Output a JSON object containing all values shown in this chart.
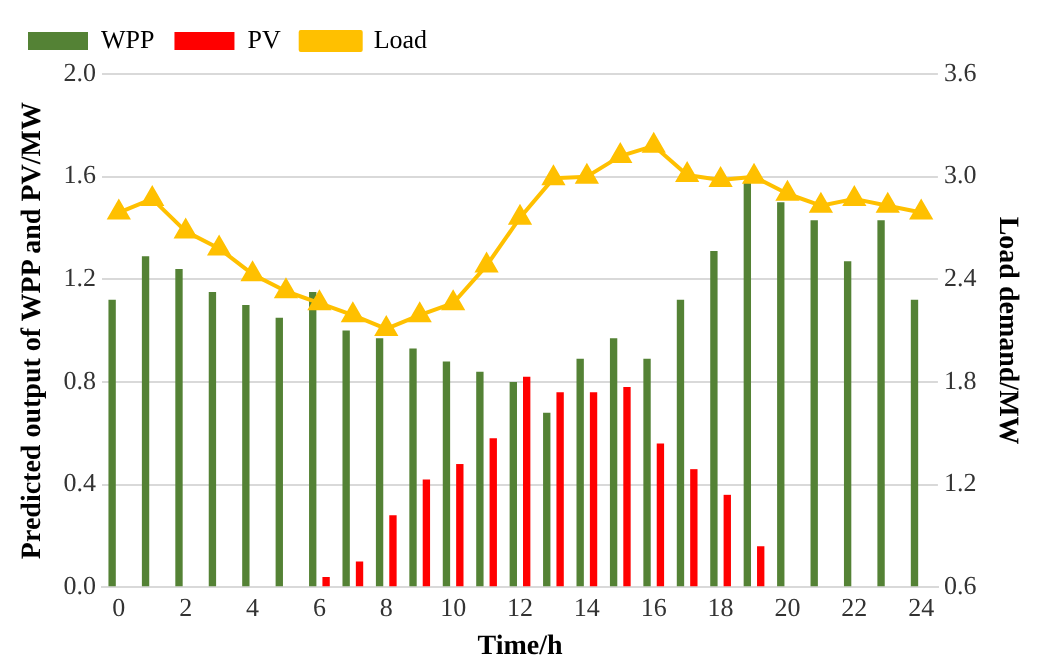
{
  "chart_data": {
    "type": "bar",
    "xlabel": "Time/h",
    "ylabel": "Predicted output of WPP and PV/MW",
    "y2label": "Load demand/MW",
    "x": [
      0,
      1,
      2,
      3,
      4,
      5,
      6,
      7,
      8,
      9,
      10,
      11,
      12,
      13,
      14,
      15,
      16,
      17,
      18,
      19,
      20,
      21,
      22,
      23,
      24
    ],
    "xlim": [
      -0.5,
      24.5
    ],
    "xticks": [
      0,
      2,
      4,
      6,
      8,
      10,
      12,
      14,
      16,
      18,
      20,
      22,
      24
    ],
    "series": [
      {
        "name": "WPP",
        "color": "#548235",
        "values": [
          1.12,
          1.29,
          1.24,
          1.15,
          1.1,
          1.05,
          1.15,
          1.0,
          0.97,
          0.93,
          0.88,
          0.84,
          0.8,
          0.68,
          0.89,
          0.97,
          0.89,
          1.12,
          1.31,
          1.58,
          1.5,
          1.43,
          1.27,
          1.43,
          1.12
        ]
      },
      {
        "name": "PV",
        "color": "#ff0000",
        "values": [
          0,
          0,
          0,
          0,
          0,
          0,
          0.04,
          0.1,
          0.28,
          0.42,
          0.48,
          0.58,
          0.82,
          0.76,
          0.76,
          0.78,
          0.56,
          0.46,
          0.36,
          0.16,
          0,
          0,
          0,
          0,
          0
        ]
      },
      {
        "name": "Load",
        "type": "line",
        "axis": "y2",
        "color": "#ffc000",
        "values": [
          2.79,
          2.87,
          2.68,
          2.58,
          2.43,
          2.33,
          2.26,
          2.19,
          2.11,
          2.19,
          2.26,
          2.48,
          2.76,
          2.99,
          3.0,
          3.12,
          3.18,
          3.01,
          2.98,
          3.0,
          2.9,
          2.83,
          2.87,
          2.83,
          2.79
        ]
      }
    ],
    "ylim": [
      0,
      2.0
    ],
    "yticks": [
      {
        "value": 0,
        "label": "0.0"
      },
      {
        "value": 0.4,
        "label": "0.4"
      },
      {
        "value": 0.8,
        "label": "0.8"
      },
      {
        "value": 1.2,
        "label": "1.2"
      },
      {
        "value": 1.6,
        "label": "1.6"
      },
      {
        "value": 2.0,
        "label": "2.0"
      }
    ],
    "y2lim": [
      0.6,
      3.6
    ],
    "y2ticks": [
      {
        "value": 0.6,
        "label": "0.6"
      },
      {
        "value": 1.2,
        "label": "1.2"
      },
      {
        "value": 1.8,
        "label": "1.8"
      },
      {
        "value": 2.4,
        "label": "2.4"
      },
      {
        "value": 3.0,
        "label": "3.0"
      },
      {
        "value": 3.6,
        "label": "3.6"
      }
    ],
    "grid": "y",
    "legend": "top left",
    "marker": "triangle",
    "line_style": "solid"
  }
}
